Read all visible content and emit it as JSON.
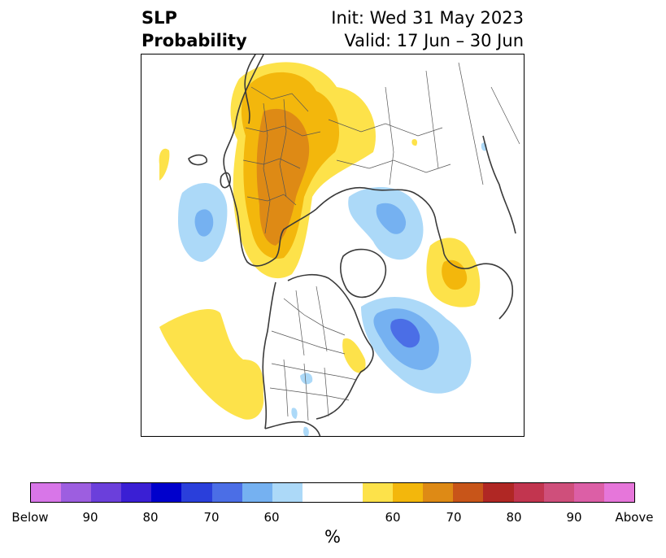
{
  "title": {
    "left_line1": "SLP",
    "left_line2": "Probability",
    "right_line1": "Init: Wed 31 May 2023",
    "right_line2": "Valid: 17 Jun – 30 Jun"
  },
  "map": {
    "projection": "north-polar-stereographic",
    "colors": {
      "coast": "#3a3a3a",
      "border": "#555555",
      "above_light": "#fde24a",
      "above_mid": "#f3b70c",
      "above_dark": "#de8a15",
      "below_light": "#acd9f8",
      "below_mid": "#75b1f1",
      "below_dark": "#4b6ee6"
    }
  },
  "colorbar": {
    "colors": [
      "#d876e8",
      "#9d5ee0",
      "#6b3fdb",
      "#3a1fd4",
      "#0000cc",
      "#2a3fdb",
      "#4b6ee6",
      "#75b1f1",
      "#acd9f8",
      "#ffffff",
      "#ffffff",
      "#fde24a",
      "#f3b70c",
      "#de8a15",
      "#c85519",
      "#b02724",
      "#c2354f",
      "#cf4f7b",
      "#dc5fa6",
      "#e676da"
    ],
    "ticks": [
      "Below",
      "90",
      "80",
      "70",
      "60",
      "60",
      "70",
      "80",
      "90",
      "Above"
    ],
    "unit": "%"
  }
}
